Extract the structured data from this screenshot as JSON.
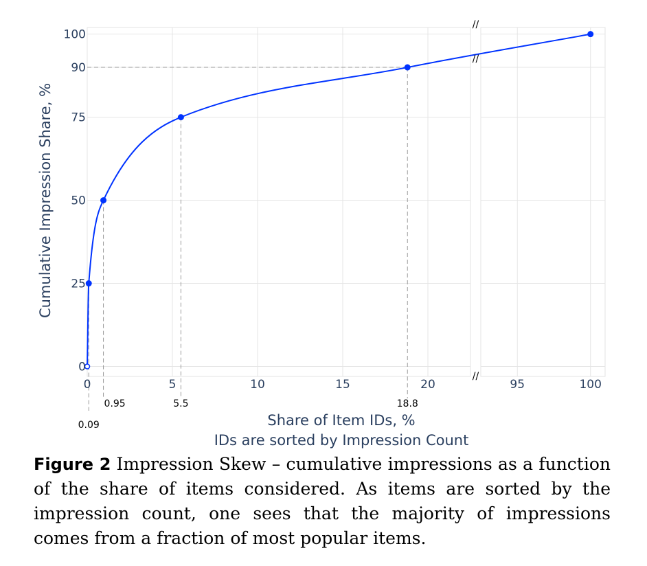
{
  "chart_data": {
    "type": "line",
    "xlabel": "Share of Item IDs, %",
    "xlabel_sub": "IDs are sorted by Impression Count",
    "ylabel": "Cumulative Impression Share, %",
    "x_axis_break": {
      "left_range": [
        0,
        22.5
      ],
      "right_range": [
        92.5,
        101
      ],
      "symbol": "//"
    },
    "ylim": [
      -3,
      102
    ],
    "x_ticks": [
      "0",
      "5",
      "10",
      "15",
      "20",
      "95",
      "100"
    ],
    "y_ticks": [
      "0",
      "25",
      "50",
      "75",
      "90",
      "100"
    ],
    "grid": true,
    "series": [
      {
        "color": "#0033ff",
        "points": [
          {
            "x": 0,
            "y": 0
          },
          {
            "x": 0.09,
            "y": 25
          },
          {
            "x": 0.95,
            "y": 50
          },
          {
            "x": 5.5,
            "y": 75
          },
          {
            "x": 18.8,
            "y": 90
          },
          {
            "x": 100,
            "y": 100
          }
        ]
      }
    ],
    "annotations": [
      {
        "text": "0.09",
        "x": 0.09
      },
      {
        "text": "0.95",
        "x": 0.95
      },
      {
        "text": "5.5",
        "x": 5.5
      },
      {
        "text": "18.8",
        "x": 18.8
      }
    ],
    "reference_lines": [
      {
        "type": "horizontal",
        "y": 90
      },
      {
        "type": "vertical",
        "x": 0.09
      },
      {
        "type": "vertical",
        "x": 0.95
      },
      {
        "type": "vertical",
        "x": 5.5
      },
      {
        "type": "vertical",
        "x": 18.8
      }
    ]
  },
  "caption": {
    "label": "Figure 2",
    "text": "Impression Skew – cumulative impressions as a function of the share of items considered. As items are sorted by the impression count, one sees that the majority of impressions comes from a fraction of most popular items."
  }
}
